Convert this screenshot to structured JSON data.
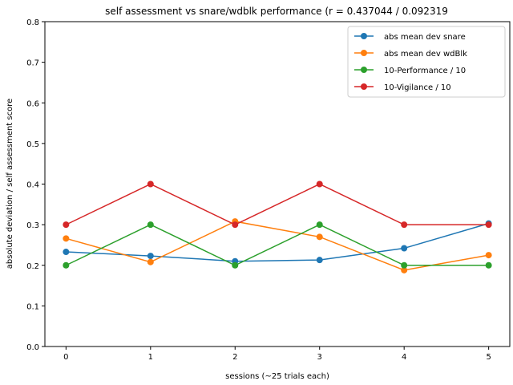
{
  "chart_data": {
    "type": "line",
    "title": "self assessment vs snare/wdblk performance (r = 0.437044 / 0.092319",
    "xlabel": "sessions (~25 trials each)",
    "ylabel": "absolute deviation / self assessment score",
    "x": [
      0,
      1,
      2,
      3,
      4,
      5
    ],
    "xlim": [
      -0.25,
      5.25
    ],
    "ylim": [
      0,
      0.8
    ],
    "xticks": [
      "0",
      "1",
      "2",
      "3",
      "4",
      "5"
    ],
    "yticks": [
      "0.0",
      "0.1",
      "0.2",
      "0.3",
      "0.4",
      "0.5",
      "0.6",
      "0.7",
      "0.8"
    ],
    "grid": false,
    "legend_position": "top-right",
    "series": [
      {
        "name": "abs mean dev snare",
        "color": "#1f77b4",
        "values": [
          0.233,
          0.223,
          0.21,
          0.213,
          0.242,
          0.303
        ]
      },
      {
        "name": "abs mean dev wdBlk",
        "color": "#ff7f0e",
        "values": [
          0.266,
          0.208,
          0.308,
          0.27,
          0.188,
          0.225
        ]
      },
      {
        "name": "10-Performance / 10",
        "color": "#2ca02c",
        "values": [
          0.2,
          0.3,
          0.2,
          0.3,
          0.2,
          0.2
        ]
      },
      {
        "name": "10-Vigilance / 10",
        "color": "#d62728",
        "values": [
          0.3,
          0.4,
          0.3,
          0.4,
          0.3,
          0.3
        ]
      }
    ]
  }
}
